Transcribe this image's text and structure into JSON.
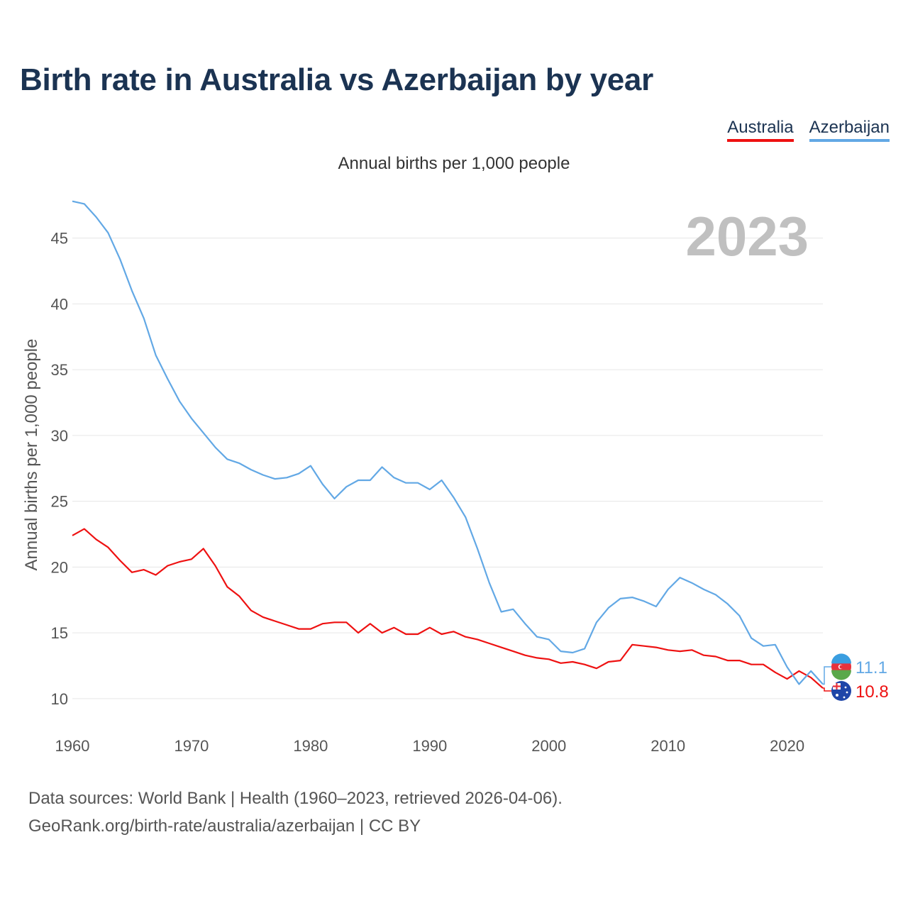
{
  "title": "Birth rate in Australia vs Azerbaijan by year",
  "subtitle": "Annual births per 1,000 people",
  "legend": [
    {
      "label": "Australia",
      "color": "#ee1111"
    },
    {
      "label": "Azerbaijan",
      "color": "#62a8e5"
    }
  ],
  "chart_data": {
    "type": "line",
    "title": "Birth rate in Australia vs Azerbaijan by year",
    "subtitle": "Annual births per 1,000 people",
    "xlabel": "",
    "ylabel": "Annual births per 1,000 people",
    "year_label": "2023",
    "xlim": [
      1960,
      2023
    ],
    "ylim": [
      8,
      48
    ],
    "x_ticks": [
      "1960",
      "1970",
      "1980",
      "1990",
      "2000",
      "2010",
      "2020"
    ],
    "y_ticks": [
      "10",
      "15",
      "20",
      "25",
      "30",
      "35",
      "40",
      "45"
    ],
    "grid": true,
    "legend_position": "top-right",
    "series": [
      {
        "name": "Australia",
        "color": "#ee1111",
        "end_label": "10.8",
        "flag_icon": "australia-flag-icon",
        "start_year": 1960,
        "values": [
          22.4,
          22.9,
          22.1,
          21.5,
          20.5,
          19.6,
          19.8,
          19.4,
          20.1,
          20.4,
          20.6,
          21.4,
          20.1,
          18.5,
          17.8,
          16.7,
          16.2,
          15.9,
          15.6,
          15.3,
          15.3,
          15.7,
          15.8,
          15.8,
          15.0,
          15.7,
          15.0,
          15.4,
          14.9,
          14.9,
          15.4,
          14.9,
          15.1,
          14.7,
          14.5,
          14.2,
          13.9,
          13.6,
          13.3,
          13.1,
          13.0,
          12.7,
          12.8,
          12.6,
          12.3,
          12.8,
          12.9,
          14.1,
          14.0,
          13.9,
          13.7,
          13.6,
          13.7,
          13.3,
          13.2,
          12.9,
          12.9,
          12.6,
          12.6,
          12.0,
          11.5,
          12.1,
          11.6,
          10.8
        ]
      },
      {
        "name": "Azerbaijan",
        "color": "#62a8e5",
        "end_label": "11.1",
        "flag_icon": "azerbaijan-flag-icon",
        "start_year": 1960,
        "values": [
          47.8,
          47.6,
          46.6,
          45.4,
          43.4,
          41.0,
          38.9,
          36.1,
          34.3,
          32.6,
          31.3,
          30.2,
          29.1,
          28.2,
          27.9,
          27.4,
          27.0,
          26.7,
          26.8,
          27.1,
          27.7,
          26.3,
          25.2,
          26.1,
          26.6,
          26.6,
          27.6,
          26.8,
          26.4,
          26.4,
          25.9,
          26.6,
          25.3,
          23.8,
          21.4,
          18.8,
          16.6,
          16.8,
          15.7,
          14.7,
          14.5,
          13.6,
          13.5,
          13.8,
          15.8,
          16.9,
          17.6,
          17.7,
          17.4,
          17.0,
          18.3,
          19.2,
          18.8,
          18.3,
          17.9,
          17.2,
          16.3,
          14.6,
          14.0,
          14.1,
          12.4,
          11.1,
          12.1,
          11.1
        ]
      }
    ]
  },
  "source_line1": "Data sources: World Bank | Health (1960–2023, retrieved 2026-04-06).",
  "source_line2": "GeoRank.org/birth-rate/australia/azerbaijan | CC BY"
}
